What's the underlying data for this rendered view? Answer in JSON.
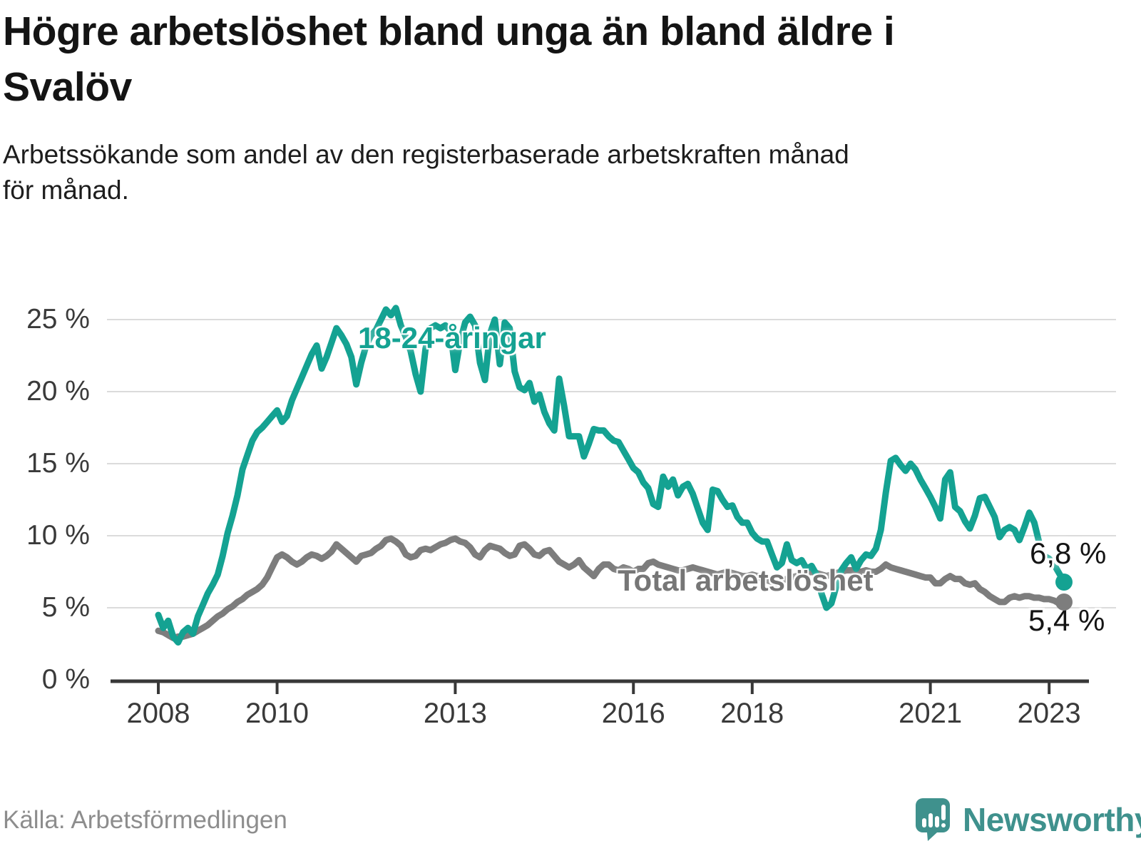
{
  "title_lines": [
    "Högre arbetslöshet bland unga än bland äldre i",
    "Svalöv"
  ],
  "subtitle_lines": [
    "Arbetssökande som andel av den registerbaserade arbetskraften månad",
    "för månad."
  ],
  "source": "Källa: Arbetsförmedlingen",
  "brand": {
    "name": "Newsworthy",
    "color": "#3F918D"
  },
  "colors": {
    "young_line": "#14A292",
    "total_line": "#7D7D7D",
    "total_label": "#767676",
    "grid": "#DBDBDB",
    "axis": "#383838",
    "end_label": "#141414"
  },
  "chart_data": {
    "type": "line",
    "title": "Högre arbetslöshet bland unga än bland äldre i Svalöv",
    "subtitle": "Arbetssökande som andel av den registerbaserade arbetskraften månad för månad.",
    "x_start_month": "2008-01",
    "x_end_month": "2023-04",
    "x_tick_years": [
      2008,
      2010,
      2013,
      2016,
      2018,
      2021,
      2023
    ],
    "y_ticks": [
      "0 %",
      "5 %",
      "10 %",
      "15 %",
      "20 %",
      "25 %"
    ],
    "y_tick_values": [
      0,
      5,
      10,
      15,
      20,
      25
    ],
    "ylim": [
      0,
      25
    ],
    "grid": "horizontal",
    "legend_position": "inline-annotations",
    "series": [
      {
        "name": "18-24-åringar",
        "color": "#14A292",
        "end_label": "6,8 %",
        "end_value": 6.8,
        "values": [
          4.5,
          3.6,
          4.1,
          3.0,
          2.6,
          3.3,
          3.6,
          3.2,
          4.4,
          5.2,
          6.0,
          6.6,
          7.3,
          8.6,
          10.2,
          11.4,
          12.8,
          14.6,
          15.6,
          16.6,
          17.2,
          17.5,
          17.9,
          18.3,
          18.7,
          17.9,
          18.3,
          19.4,
          20.2,
          21.0,
          21.8,
          22.6,
          23.2,
          21.6,
          22.4,
          23.4,
          24.4,
          23.9,
          23.3,
          22.4,
          20.5,
          22.0,
          23.2,
          23.9,
          24.3,
          25.0,
          25.7,
          25.3,
          25.8,
          24.6,
          23.8,
          22.8,
          21.2,
          20.0,
          23.0,
          24.4,
          24.6,
          24.4,
          24.6,
          24.2,
          21.5,
          23.5,
          24.8,
          25.2,
          24.6,
          22.0,
          20.8,
          24.0,
          25.0,
          21.9,
          24.8,
          24.4,
          21.4,
          20.3,
          20.1,
          20.6,
          19.3,
          19.8,
          18.6,
          17.8,
          17.3,
          20.9,
          19.0,
          16.9,
          16.9,
          16.9,
          15.5,
          16.4,
          17.4,
          17.3,
          17.3,
          16.9,
          16.6,
          16.5,
          15.9,
          15.3,
          14.7,
          14.4,
          13.7,
          13.3,
          12.2,
          12.0,
          14.1,
          13.4,
          13.9,
          12.8,
          13.4,
          13.6,
          12.9,
          11.9,
          10.9,
          10.4,
          13.2,
          13.1,
          12.5,
          12.0,
          12.1,
          11.3,
          10.9,
          10.9,
          10.2,
          9.8,
          9.6,
          9.6,
          8.7,
          7.8,
          8.1,
          9.4,
          8.3,
          8.1,
          8.3,
          7.7,
          7.9,
          7.3,
          6.0,
          5.0,
          5.3,
          6.5,
          7.6,
          8.1,
          8.5,
          7.7,
          8.3,
          8.7,
          8.6,
          9.1,
          10.4,
          13.0,
          15.2,
          15.4,
          14.9,
          14.5,
          15.0,
          14.6,
          13.9,
          13.3,
          12.7,
          12.0,
          11.2,
          13.9,
          14.4,
          12.0,
          11.7,
          11.0,
          10.5,
          11.4,
          12.6,
          12.7,
          12.0,
          11.3,
          9.9,
          10.4,
          10.6,
          10.4,
          9.7,
          10.6,
          11.6,
          10.9,
          9.5,
          8.6,
          8.4,
          8.0,
          7.4,
          6.8
        ]
      },
      {
        "name": "Total arbetslöshet",
        "color": "#7D7D7D",
        "end_label": "5,4 %",
        "end_value": 5.4,
        "values": [
          3.4,
          3.3,
          3.1,
          2.9,
          3.0,
          3.0,
          3.1,
          3.2,
          3.4,
          3.6,
          3.8,
          4.1,
          4.4,
          4.6,
          4.9,
          5.1,
          5.4,
          5.6,
          5.9,
          6.1,
          6.3,
          6.6,
          7.1,
          7.8,
          8.5,
          8.7,
          8.5,
          8.2,
          8.0,
          8.2,
          8.5,
          8.7,
          8.6,
          8.4,
          8.6,
          8.9,
          9.4,
          9.1,
          8.8,
          8.5,
          8.2,
          8.6,
          8.7,
          8.8,
          9.1,
          9.3,
          9.7,
          9.8,
          9.6,
          9.3,
          8.7,
          8.5,
          8.6,
          9.0,
          9.1,
          9.0,
          9.2,
          9.4,
          9.5,
          9.7,
          9.8,
          9.6,
          9.5,
          9.2,
          8.7,
          8.5,
          9.0,
          9.3,
          9.2,
          9.1,
          8.8,
          8.6,
          8.7,
          9.3,
          9.4,
          9.1,
          8.7,
          8.6,
          8.9,
          9.0,
          8.6,
          8.2,
          8.0,
          7.8,
          8.0,
          8.3,
          7.8,
          7.5,
          7.2,
          7.7,
          8.0,
          8.0,
          7.7,
          7.6,
          7.8,
          7.7,
          7.5,
          7.7,
          7.7,
          8.1,
          8.2,
          8.0,
          7.9,
          7.8,
          7.7,
          7.6,
          7.6,
          7.7,
          7.8,
          7.7,
          7.6,
          7.5,
          7.4,
          7.3,
          7.4,
          7.5,
          7.4,
          7.3,
          7.2,
          7.2,
          7.3,
          7.2,
          7.0,
          6.9,
          6.8,
          6.7,
          6.9,
          7.0,
          7.1,
          7.2,
          7.3,
          7.4,
          7.5,
          7.4,
          7.3,
          7.2,
          7.3,
          7.4,
          7.5,
          7.6,
          7.6,
          7.5,
          7.5,
          7.6,
          7.5,
          7.5,
          7.7,
          8.0,
          7.8,
          7.7,
          7.6,
          7.5,
          7.4,
          7.3,
          7.2,
          7.1,
          7.1,
          6.7,
          6.7,
          7.0,
          7.2,
          7.0,
          7.0,
          6.7,
          6.6,
          6.7,
          6.3,
          6.1,
          5.8,
          5.6,
          5.4,
          5.4,
          5.7,
          5.8,
          5.7,
          5.8,
          5.8,
          5.7,
          5.7,
          5.6,
          5.6,
          5.5,
          5.3,
          5.4
        ]
      }
    ]
  }
}
